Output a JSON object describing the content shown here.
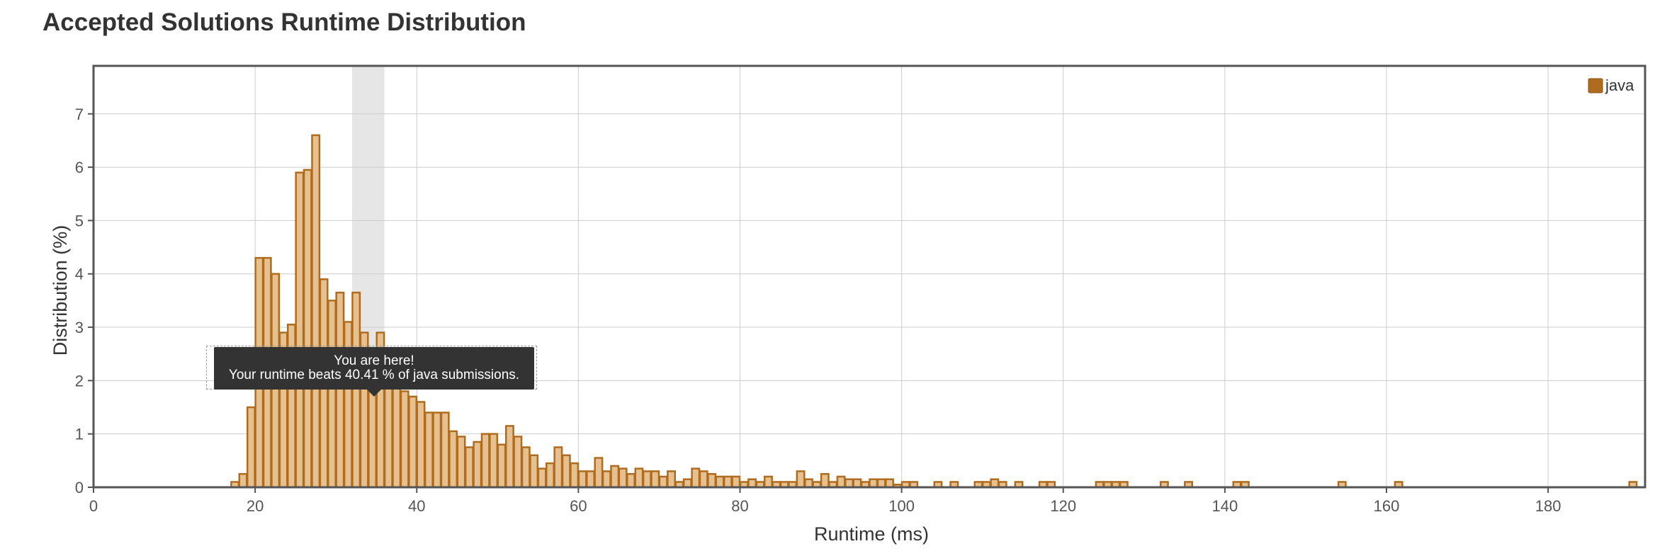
{
  "title": "Accepted Solutions Runtime Distribution",
  "tooltip": {
    "line1": "You are here!",
    "line2": "Your runtime beats 40.41 % of java submissions."
  },
  "colors": {
    "bar_fill": "#e6c08f",
    "bar_stroke": "#b06c1e",
    "legend_fill": "#b06c1e",
    "highlight": "#e6e6e6",
    "grid": "#cccccc",
    "frame": "#555555"
  },
  "chart_data": {
    "type": "bar",
    "title": "Accepted Solutions Runtime Distribution",
    "xlabel": "Runtime (ms)",
    "ylabel": "Distribution (%)",
    "xlim": [
      0,
      192
    ],
    "ylim": [
      0,
      7.9
    ],
    "xticks": [
      0,
      20,
      40,
      60,
      80,
      100,
      120,
      140,
      160,
      180
    ],
    "yticks": [
      0,
      1,
      2,
      3,
      4,
      5,
      6,
      7
    ],
    "grid": true,
    "legend_position": "top-right",
    "highlight_range": [
      32,
      36
    ],
    "series": [
      {
        "name": "java",
        "bins": [
          [
            17,
            0.1
          ],
          [
            18,
            0.25
          ],
          [
            19,
            1.5
          ],
          [
            20,
            4.3
          ],
          [
            21,
            4.3
          ],
          [
            22,
            4.0
          ],
          [
            23,
            2.9
          ],
          [
            24,
            3.05
          ],
          [
            25,
            5.9
          ],
          [
            26,
            5.95
          ],
          [
            27,
            6.6
          ],
          [
            28,
            3.9
          ],
          [
            29,
            3.5
          ],
          [
            30,
            3.65
          ],
          [
            31,
            3.1
          ],
          [
            32,
            3.65
          ],
          [
            33,
            2.9
          ],
          [
            34,
            2.6
          ],
          [
            35,
            2.9
          ],
          [
            36,
            2.3
          ],
          [
            37,
            1.9
          ],
          [
            38,
            1.8
          ],
          [
            39,
            1.7
          ],
          [
            40,
            1.6
          ],
          [
            41,
            1.4
          ],
          [
            42,
            1.4
          ],
          [
            43,
            1.4
          ],
          [
            44,
            1.05
          ],
          [
            45,
            0.95
          ],
          [
            46,
            0.75
          ],
          [
            47,
            0.85
          ],
          [
            48,
            1.0
          ],
          [
            49,
            1.0
          ],
          [
            50,
            0.8
          ],
          [
            51,
            1.15
          ],
          [
            52,
            0.95
          ],
          [
            53,
            0.75
          ],
          [
            54,
            0.6
          ],
          [
            55,
            0.35
          ],
          [
            56,
            0.45
          ],
          [
            57,
            0.75
          ],
          [
            58,
            0.6
          ],
          [
            59,
            0.45
          ],
          [
            60,
            0.3
          ],
          [
            61,
            0.3
          ],
          [
            62,
            0.55
          ],
          [
            63,
            0.3
          ],
          [
            64,
            0.4
          ],
          [
            65,
            0.35
          ],
          [
            66,
            0.25
          ],
          [
            67,
            0.35
          ],
          [
            68,
            0.3
          ],
          [
            69,
            0.3
          ],
          [
            70,
            0.2
          ],
          [
            71,
            0.3
          ],
          [
            72,
            0.1
          ],
          [
            73,
            0.15
          ],
          [
            74,
            0.35
          ],
          [
            75,
            0.3
          ],
          [
            76,
            0.25
          ],
          [
            77,
            0.2
          ],
          [
            78,
            0.2
          ],
          [
            79,
            0.2
          ],
          [
            80,
            0.1
          ],
          [
            81,
            0.15
          ],
          [
            82,
            0.1
          ],
          [
            83,
            0.2
          ],
          [
            84,
            0.1
          ],
          [
            85,
            0.1
          ],
          [
            86,
            0.1
          ],
          [
            87,
            0.3
          ],
          [
            88,
            0.15
          ],
          [
            89,
            0.1
          ],
          [
            90,
            0.25
          ],
          [
            91,
            0.1
          ],
          [
            92,
            0.2
          ],
          [
            93,
            0.15
          ],
          [
            94,
            0.15
          ],
          [
            95,
            0.1
          ],
          [
            96,
            0.15
          ],
          [
            97,
            0.15
          ],
          [
            98,
            0.15
          ],
          [
            99,
            0.05
          ],
          [
            100,
            0.1
          ],
          [
            101,
            0.1
          ],
          [
            104,
            0.1
          ],
          [
            106,
            0.1
          ],
          [
            109,
            0.1
          ],
          [
            110,
            0.1
          ],
          [
            111,
            0.15
          ],
          [
            112,
            0.1
          ],
          [
            114,
            0.1
          ],
          [
            117,
            0.1
          ],
          [
            118,
            0.1
          ],
          [
            124,
            0.1
          ],
          [
            125,
            0.1
          ],
          [
            126,
            0.1
          ],
          [
            127,
            0.1
          ],
          [
            132,
            0.1
          ],
          [
            135,
            0.1
          ],
          [
            141,
            0.1
          ],
          [
            142,
            0.1
          ],
          [
            154,
            0.1
          ],
          [
            161,
            0.1
          ],
          [
            190,
            0.1
          ]
        ]
      }
    ]
  }
}
